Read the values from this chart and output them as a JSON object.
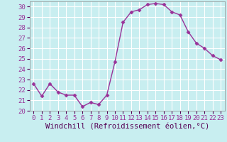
{
  "x": [
    0,
    1,
    2,
    3,
    4,
    5,
    6,
    7,
    8,
    9,
    10,
    11,
    12,
    13,
    14,
    15,
    16,
    17,
    18,
    19,
    20,
    21,
    22,
    23
  ],
  "y": [
    22.6,
    21.4,
    22.6,
    21.8,
    21.5,
    21.5,
    20.4,
    20.8,
    20.6,
    21.5,
    24.7,
    28.5,
    29.5,
    29.7,
    30.2,
    30.3,
    30.2,
    29.5,
    29.2,
    27.6,
    26.5,
    26.0,
    25.3,
    24.9
  ],
  "line_color": "#993399",
  "marker": "D",
  "marker_size": 2.5,
  "bg_color": "#c8eef0",
  "grid_color": "#ffffff",
  "xlabel": "Windchill (Refroidissement éolien,°C)",
  "ylim": [
    20,
    30.5
  ],
  "xlim": [
    -0.5,
    23.5
  ],
  "yticks": [
    20,
    21,
    22,
    23,
    24,
    25,
    26,
    27,
    28,
    29,
    30
  ],
  "xticks": [
    0,
    1,
    2,
    3,
    4,
    5,
    6,
    7,
    8,
    9,
    10,
    11,
    12,
    13,
    14,
    15,
    16,
    17,
    18,
    19,
    20,
    21,
    22,
    23
  ],
  "xlabel_fontsize": 7.5,
  "tick_fontsize": 6.5,
  "line_width": 1.0
}
